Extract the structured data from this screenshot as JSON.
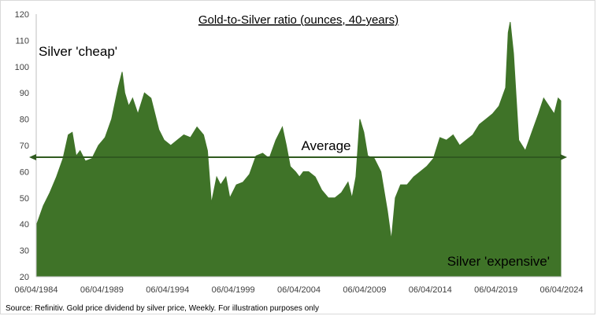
{
  "chart_data": {
    "type": "area",
    "title": "Gold-to-Silver ratio (ounces, 40-years)",
    "xlabel": "",
    "ylabel": "",
    "ylim": [
      20,
      120
    ],
    "yticks": [
      20,
      30,
      40,
      50,
      60,
      70,
      80,
      90,
      100,
      110,
      120
    ],
    "xlim": [
      1984.26,
      2024.26
    ],
    "xtick_labels": [
      "06/04/1984",
      "06/04/1989",
      "06/04/1994",
      "06/04/1999",
      "06/04/2004",
      "06/04/2009",
      "06/04/2014",
      "06/04/2019",
      "06/04/2024"
    ],
    "grid": false,
    "legend": "none",
    "area_color": "#3f7328",
    "average": {
      "label": "Average",
      "value": 65.5
    },
    "annotations": {
      "top_left": "Silver 'cheap'",
      "bottom_right": "Silver 'expensive'"
    },
    "series": [
      {
        "x": [
          1984.3,
          1984.8,
          1985.3,
          1985.8,
          1986.3,
          1986.7,
          1987.0,
          1987.3,
          1987.6,
          1988.0,
          1988.5,
          1989.0,
          1989.5,
          1990.0,
          1990.5,
          1990.8,
          1991.0,
          1991.3,
          1991.6,
          1992.0,
          1992.5,
          1993.0,
          1993.3,
          1993.6,
          1994.0,
          1994.5,
          1995.0,
          1995.5,
          1996.0,
          1996.5,
          1997.0,
          1997.3,
          1997.6,
          1998.0,
          1998.3,
          1998.7,
          1999.0,
          1999.5,
          2000.0,
          2000.5,
          2001.0,
          2001.5,
          2002.0,
          2002.5,
          2003.0,
          2003.3,
          2003.6,
          2004.0,
          2004.3,
          2004.6,
          2005.0,
          2005.5,
          2006.0,
          2006.5,
          2007.0,
          2007.5,
          2008.0,
          2008.3,
          2008.6,
          2008.9,
          2009.2,
          2009.5,
          2010.0,
          2010.5,
          2011.0,
          2011.3,
          2011.6,
          2012.0,
          2012.5,
          2013.0,
          2013.5,
          2014.0,
          2014.5,
          2015.0,
          2015.5,
          2016.0,
          2016.5,
          2017.0,
          2017.5,
          2018.0,
          2018.5,
          2019.0,
          2019.5,
          2020.0,
          2020.2,
          2020.35,
          2020.6,
          2021.0,
          2021.5,
          2022.0,
          2022.5,
          2022.9,
          2023.3,
          2023.7,
          2024.0,
          2024.2
        ],
        "values": [
          40,
          47,
          52,
          58,
          65,
          74,
          75,
          66,
          68,
          64,
          65,
          70,
          73,
          80,
          92,
          98,
          90,
          85,
          88,
          82,
          90,
          88,
          82,
          76,
          72,
          70,
          72,
          74,
          73,
          77,
          74,
          68,
          48,
          58,
          55,
          58,
          50,
          55,
          56,
          59,
          66,
          67,
          65,
          72,
          77,
          70,
          62,
          60,
          58,
          60,
          60,
          58,
          53,
          50,
          50,
          52,
          56,
          50,
          58,
          80,
          75,
          66,
          65,
          60,
          45,
          34,
          50,
          55,
          55,
          58,
          60,
          62,
          65,
          73,
          72,
          74,
          70,
          72,
          74,
          78,
          80,
          82,
          85,
          92,
          113,
          117,
          105,
          72,
          68,
          75,
          82,
          88,
          85,
          82,
          88,
          87
        ]
      }
    ]
  },
  "source_note": "Source: Refinitiv. Gold price dividend by silver price, Weekly. For illustration purposes only"
}
